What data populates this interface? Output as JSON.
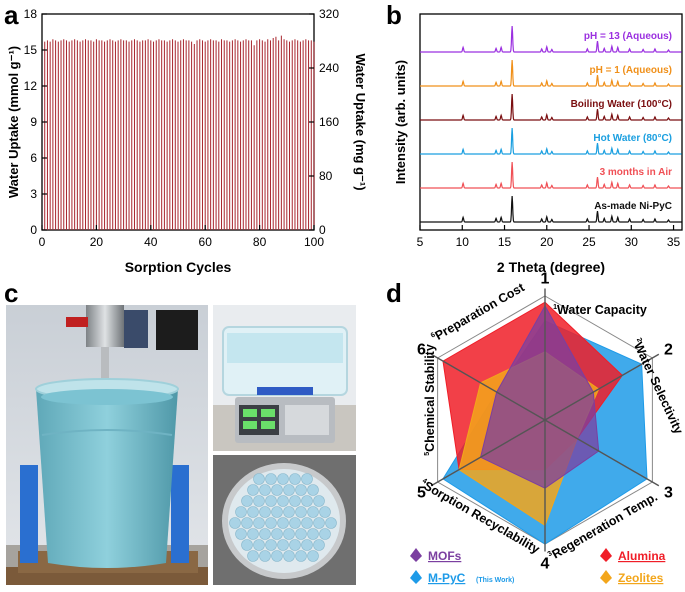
{
  "panel_labels": {
    "a": "a",
    "b": "b",
    "c": "c",
    "d": "d"
  },
  "colors": {
    "bars": "#a8252d",
    "ph13": "#9b30e0",
    "ph1": "#f0901a",
    "boiling": "#7a0e10",
    "hot": "#1a9fe0",
    "air": "#f05056",
    "asmade": "#111111",
    "mofs": "#7b3fa0",
    "mpyc": "#1e9be8",
    "alumina": "#f01e28",
    "zeolites": "#f3a61b"
  },
  "chart_data": [
    {
      "type": "bar",
      "panel": "a",
      "xlabel": "Sorption Cycles",
      "ylabel": "Water Uptake (mmol g⁻¹)",
      "ylabel_right": "Water Uptake (mg g⁻¹)",
      "xlim": [
        0,
        100
      ],
      "ylim": [
        0,
        18
      ],
      "ylim_right": [
        0,
        320
      ],
      "x_ticks": [
        0,
        20,
        40,
        60,
        80,
        100
      ],
      "y_ticks": [
        0,
        3,
        6,
        9,
        12,
        15,
        18
      ],
      "y_ticks_right": [
        0,
        80,
        160,
        240,
        320
      ],
      "x": [
        1,
        2,
        3,
        4,
        5,
        6,
        7,
        8,
        9,
        10,
        11,
        12,
        13,
        14,
        15,
        16,
        17,
        18,
        19,
        20,
        21,
        22,
        23,
        24,
        25,
        26,
        27,
        28,
        29,
        30,
        31,
        32,
        33,
        34,
        35,
        36,
        37,
        38,
        39,
        40,
        41,
        42,
        43,
        44,
        45,
        46,
        47,
        48,
        49,
        50,
        51,
        52,
        53,
        54,
        55,
        56,
        57,
        58,
        59,
        60,
        61,
        62,
        63,
        64,
        65,
        66,
        67,
        68,
        69,
        70,
        71,
        72,
        73,
        74,
        75,
        76,
        77,
        78,
        79,
        80,
        81,
        82,
        83,
        84,
        85,
        86,
        87,
        88,
        89,
        90,
        91,
        92,
        93,
        94,
        95,
        96,
        97,
        98,
        99,
        100
      ],
      "values": [
        15.7,
        15.8,
        15.7,
        15.9,
        15.8,
        15.7,
        15.8,
        15.9,
        15.8,
        15.7,
        15.8,
        15.9,
        15.8,
        15.7,
        15.8,
        15.9,
        15.8,
        15.8,
        15.7,
        15.9,
        15.8,
        15.8,
        15.7,
        15.8,
        15.9,
        15.8,
        15.7,
        15.8,
        15.9,
        15.8,
        15.8,
        15.7,
        15.8,
        15.9,
        15.8,
        15.7,
        15.8,
        15.8,
        15.9,
        15.8,
        15.7,
        15.8,
        15.9,
        15.8,
        15.8,
        15.7,
        15.8,
        15.9,
        15.8,
        15.7,
        15.8,
        15.9,
        15.8,
        15.8,
        15.7,
        15.5,
        15.8,
        15.9,
        15.8,
        15.7,
        15.8,
        15.9,
        15.8,
        15.8,
        15.7,
        15.9,
        15.8,
        15.8,
        15.7,
        15.8,
        15.9,
        15.8,
        15.7,
        15.8,
        15.9,
        15.8,
        15.8,
        15.4,
        15.8,
        15.9,
        15.8,
        15.7,
        15.9,
        15.8,
        16.0,
        16.1,
        15.8,
        16.2,
        15.9,
        15.8,
        15.7,
        15.8,
        15.9,
        15.8,
        15.7,
        15.8,
        15.9,
        15.8,
        15.8,
        15.7
      ],
      "grid": false
    },
    {
      "type": "line",
      "panel": "b",
      "xlabel": "2 Theta (degree)",
      "ylabel": "Intensity (arb. units)",
      "xlim": [
        5,
        36
      ],
      "x_ticks": [
        5,
        10,
        15,
        20,
        25,
        30,
        35
      ],
      "peaks": [
        {
          "x": 10.1,
          "h": 0.18
        },
        {
          "x": 14.0,
          "h": 0.14
        },
        {
          "x": 14.6,
          "h": 0.18
        },
        {
          "x": 15.9,
          "h": 1.0
        },
        {
          "x": 19.4,
          "h": 0.12
        },
        {
          "x": 20.0,
          "h": 0.2
        },
        {
          "x": 20.6,
          "h": 0.1
        },
        {
          "x": 24.8,
          "h": 0.12
        },
        {
          "x": 26.0,
          "h": 0.42
        },
        {
          "x": 26.8,
          "h": 0.14
        },
        {
          "x": 27.7,
          "h": 0.22
        },
        {
          "x": 28.4,
          "h": 0.18
        },
        {
          "x": 29.8,
          "h": 0.12
        },
        {
          "x": 31.4,
          "h": 0.1
        },
        {
          "x": 32.8,
          "h": 0.12
        },
        {
          "x": 34.4,
          "h": 0.08
        }
      ],
      "series": [
        {
          "name": "As-made Ni-PyC",
          "color": "#111111"
        },
        {
          "name": "3 months in Air",
          "color": "#f05056"
        },
        {
          "name": "Hot Water (80°C)",
          "color": "#1a9fe0"
        },
        {
          "name": "Boiling Water (100°C)",
          "color": "#7a0e10"
        },
        {
          "name": "pH = 1 (Aqueous)",
          "color": "#f0901a"
        },
        {
          "name": "pH = 13 (Aqueous)",
          "color": "#9b30e0"
        }
      ]
    },
    {
      "type": "radar",
      "panel": "d",
      "axes": [
        {
          "num": "1",
          "label": "Water Capacity",
          "sub": "1"
        },
        {
          "num": "2",
          "label": "Water Selectivity",
          "sub": "2"
        },
        {
          "num": "3",
          "label": "Regeneration Temp.",
          "sub": "3"
        },
        {
          "num": "4",
          "label": "Sorption Recyclability",
          "sub": "4"
        },
        {
          "num": "5",
          "label": "Chemical Stability",
          "sub": "5"
        },
        {
          "num": "6",
          "label": "Preparation Cost",
          "sub": "6"
        }
      ],
      "rmax": 1,
      "series": [
        {
          "name": "MOFs",
          "color": "#7b3fa0",
          "values": [
            0.92,
            0.45,
            0.5,
            0.55,
            0.6,
            0.45
          ]
        },
        {
          "name": "M-PyC",
          "note": "(This Work)",
          "color": "#1e9be8",
          "values": [
            0.8,
            0.9,
            0.95,
            1.0,
            0.95,
            0.45
          ]
        },
        {
          "name": "Alumina",
          "color": "#f01e28",
          "values": [
            0.95,
            0.72,
            0.3,
            0.4,
            0.8,
            0.95
          ]
        },
        {
          "name": "Zeolites",
          "color": "#f3a61b",
          "values": [
            0.55,
            0.5,
            0.3,
            0.85,
            0.8,
            0.6
          ]
        }
      ],
      "legend": "bottom"
    }
  ],
  "photos": [
    {
      "name": "mixer-vessel-photo",
      "desc": "mixer"
    },
    {
      "name": "weighed-box-photo",
      "desc": "box"
    },
    {
      "name": "pellets-dish-photo",
      "desc": "pellets"
    }
  ]
}
